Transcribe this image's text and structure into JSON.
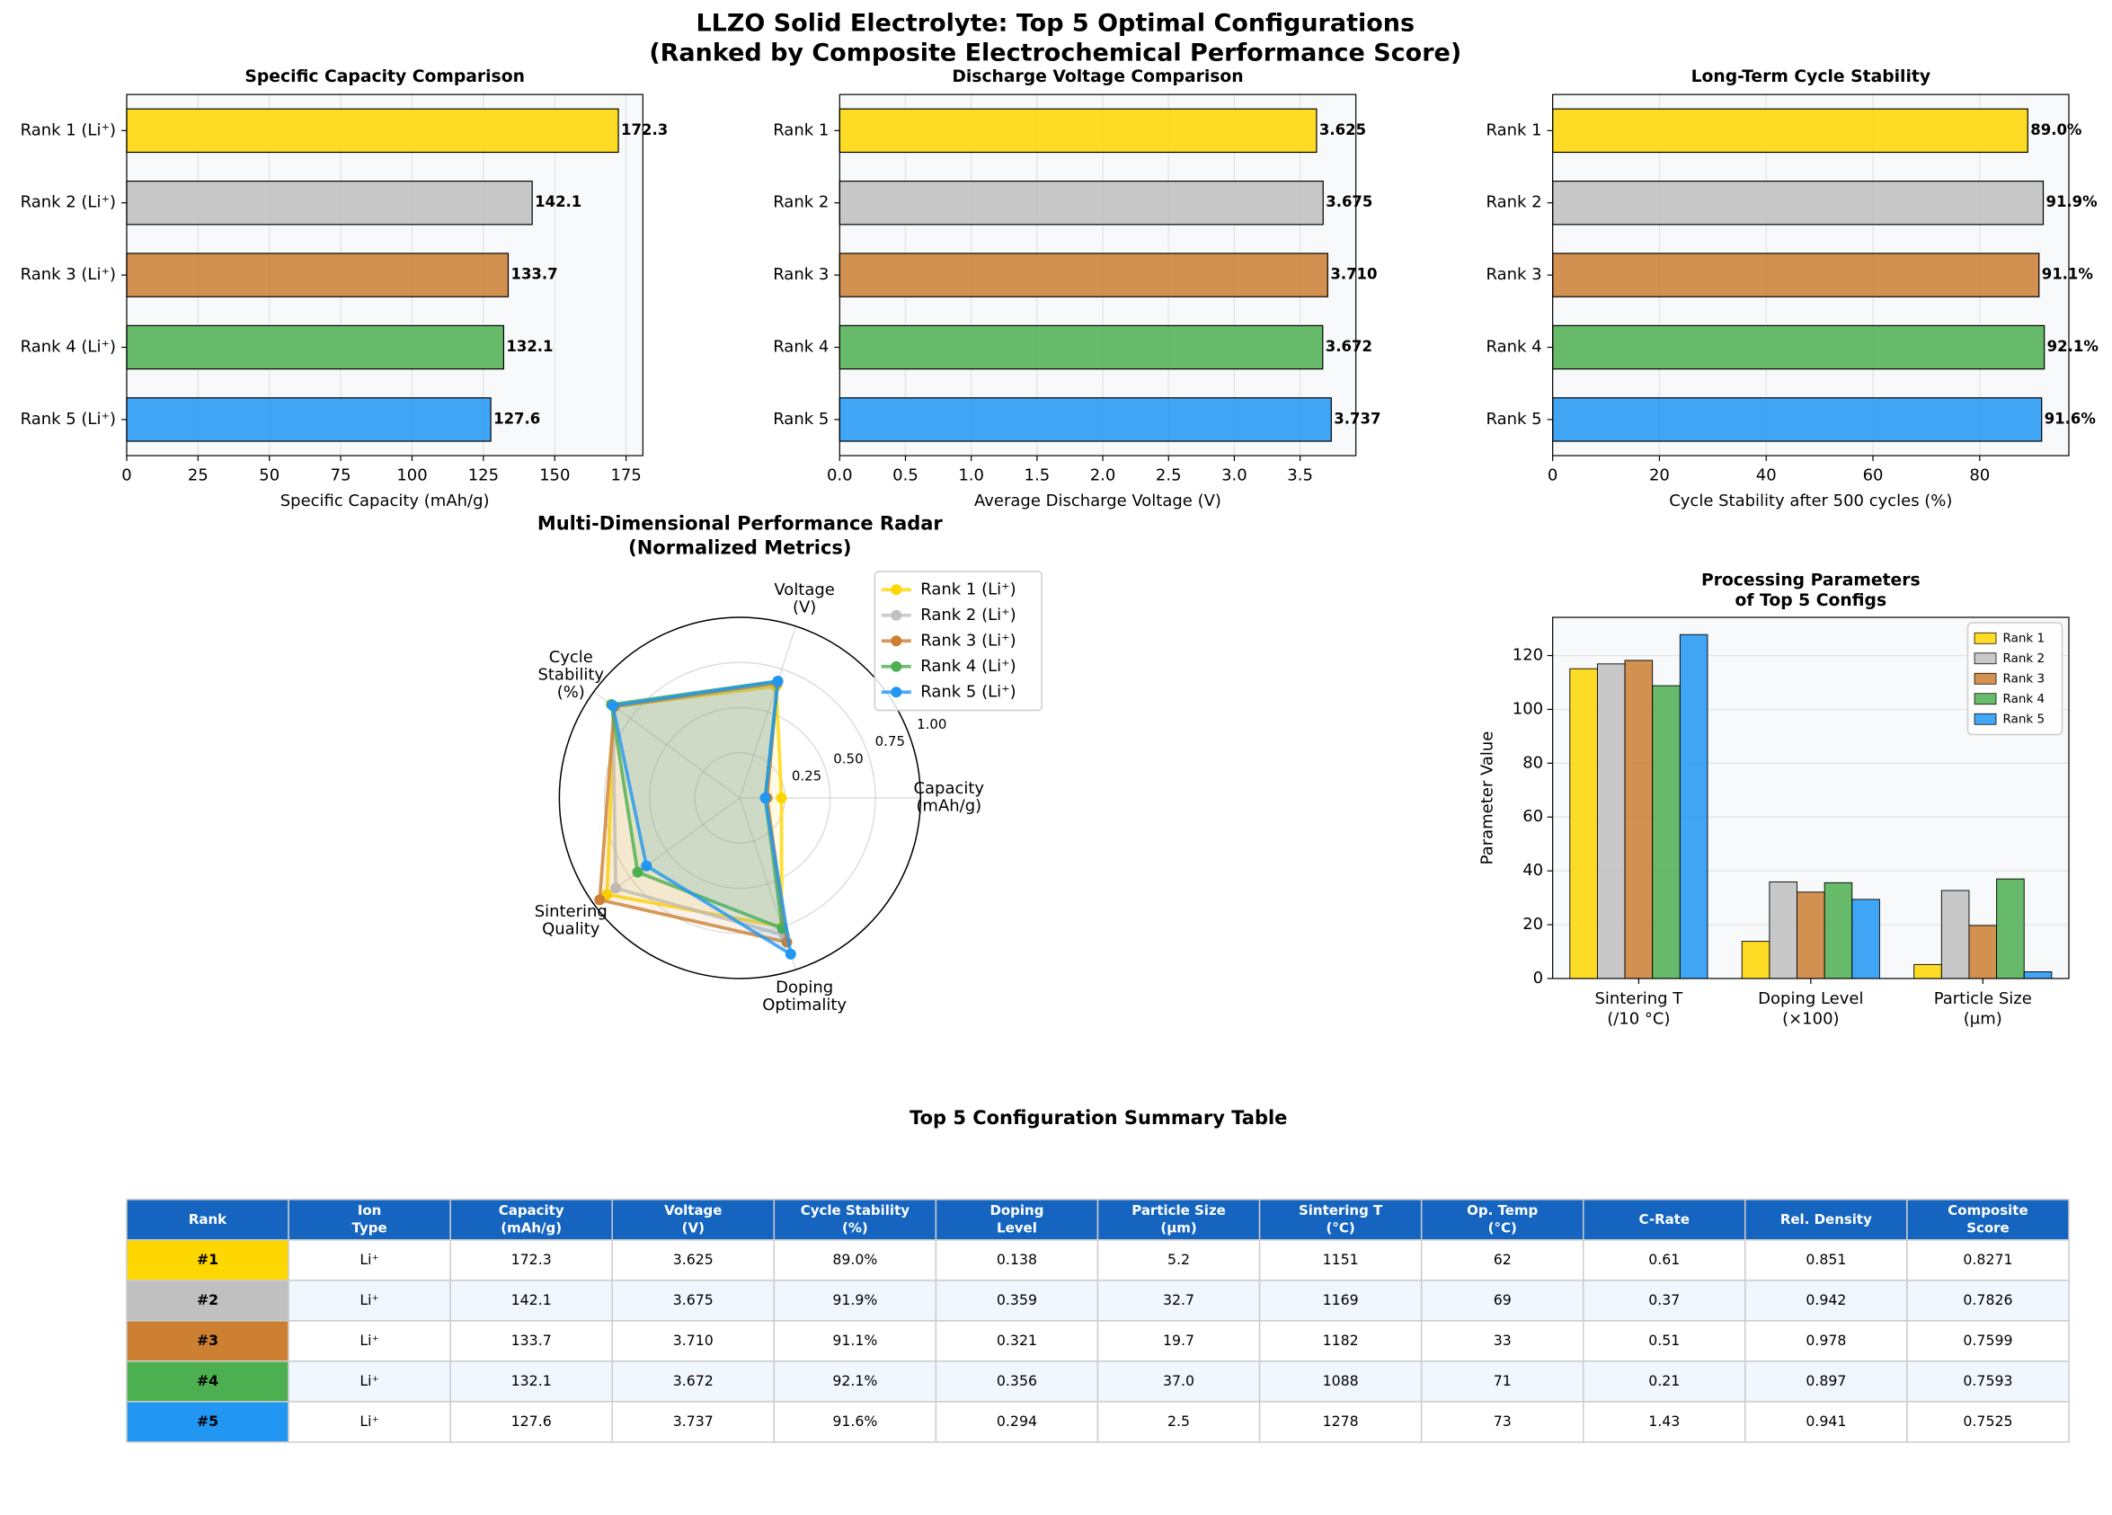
{
  "title": [
    "LLZO Solid Electrolyte: Top 5 Optimal Configurations",
    "(Ranked by Composite Electrochemical Performance Score)"
  ],
  "chart_data": [
    {
      "type": "barh",
      "title": [
        "Specific Capacity Comparison"
      ],
      "categories": [
        "Rank 1 (Li⁺)",
        "Rank 2 (Li⁺)",
        "Rank 3 (Li⁺)",
        "Rank 4 (Li⁺)",
        "Rank 5 (Li⁺)"
      ],
      "values": [
        172.3,
        142.1,
        133.7,
        132.1,
        127.6
      ],
      "colors": [
        "#FFD700",
        "#C0C0C0",
        "#CD7F32",
        "#4CAF50",
        "#2196F3"
      ],
      "xlim": [
        0,
        180.9
      ],
      "xticks": [
        0,
        25,
        50,
        75,
        100,
        125,
        150,
        175
      ],
      "xlabel": "Specific Capacity (mAh/g)",
      "grid": true
    },
    {
      "type": "barh",
      "title": [
        "Discharge Voltage Comparison"
      ],
      "categories": [
        "Rank 1",
        "Rank 2",
        "Rank 3",
        "Rank 4",
        "Rank 5"
      ],
      "values": [
        3.625,
        3.675,
        3.71,
        3.672,
        3.737
      ],
      "value_labels": [
        "3.625",
        "3.675",
        "3.710",
        "3.672",
        "3.737"
      ],
      "colors": [
        "#FFD700",
        "#C0C0C0",
        "#CD7F32",
        "#4CAF50",
        "#2196F3"
      ],
      "xlim": [
        0,
        3.924
      ],
      "xticks": [
        {
          "value": 0,
          "label": "0.0"
        },
        0.5,
        {
          "value": 1,
          "label": "1.0"
        },
        1.5,
        {
          "value": 2,
          "label": "2.0"
        },
        2.5,
        {
          "value": 3,
          "label": "3.0"
        },
        3.5
      ],
      "xlabel": "Average Discharge Voltage (V)",
      "grid": true
    },
    {
      "type": "barh",
      "title": [
        "Long-Term Cycle Stability"
      ],
      "categories": [
        "Rank 1",
        "Rank 2",
        "Rank 3",
        "Rank 4",
        "Rank 5"
      ],
      "values": [
        89.0,
        91.9,
        91.1,
        92.1,
        91.6
      ],
      "value_labels": [
        "89.0%",
        "91.9%",
        "91.1%",
        "92.1%",
        "91.6%"
      ],
      "colors": [
        "#FFD700",
        "#C0C0C0",
        "#CD7F32",
        "#4CAF50",
        "#2196F3"
      ],
      "xlim": [
        0,
        96.7
      ],
      "xticks": [
        0,
        20,
        40,
        60,
        80
      ],
      "xlabel": "Cycle Stability after 500 cycles (%)",
      "grid": true
    },
    {
      "type": "radar",
      "title": [
        "Multi-Dimensional Performance Radar",
        "(Normalized Metrics)"
      ],
      "axes": [
        [
          "Capacity",
          "(mAh/g)"
        ],
        [
          "Voltage",
          "(V)"
        ],
        [
          "Cycle",
          "Stability",
          "(%)"
        ],
        [
          "Sintering",
          "Quality"
        ],
        [
          "Doping",
          "Optimality"
        ]
      ],
      "rlim": [
        0,
        1
      ],
      "rticks": [
        0.25,
        {
          "value": 0.5,
          "label": "0.50"
        },
        0.75,
        {
          "value": 1,
          "label": "1.00"
        }
      ],
      "series": [
        {
          "name": "Rank 1 (Li⁺)",
          "color": "#FFD700",
          "values": [
            0.23,
            0.65,
            0.86,
            0.91,
            0.75
          ]
        },
        {
          "name": "Rank 2 (Li⁺)",
          "color": "#C0C0C0",
          "values": [
            0.15,
            0.67,
            0.87,
            0.85,
            0.8
          ]
        },
        {
          "name": "Rank 3 (Li⁺)",
          "color": "#CD7F32",
          "values": [
            0.15,
            0.67,
            0.86,
            0.96,
            0.84
          ]
        },
        {
          "name": "Rank 4 (Li⁺)",
          "color": "#4CAF50",
          "values": [
            0.14,
            0.68,
            0.88,
            0.7,
            0.76
          ]
        },
        {
          "name": "Rank 5 (Li⁺)",
          "color": "#2196F3",
          "values": [
            0.14,
            0.68,
            0.87,
            0.64,
            0.91
          ]
        }
      ],
      "legend": "upper right"
    },
    {
      "type": "grouped_bar",
      "title": [
        "Processing Parameters",
        "of Top 5 Configs"
      ],
      "categories": [
        [
          "Sintering T",
          "(/10 °C)"
        ],
        [
          "Doping Level",
          "(×100)"
        ],
        [
          "Particle Size",
          "(μm)"
        ]
      ],
      "series": [
        {
          "name": "Rank 1",
          "color": "#FFD700",
          "values": [
            115.1,
            13.8,
            5.2
          ]
        },
        {
          "name": "Rank 2",
          "color": "#C0C0C0",
          "values": [
            116.9,
            35.9,
            32.7
          ]
        },
        {
          "name": "Rank 3",
          "color": "#CD7F32",
          "values": [
            118.2,
            32.1,
            19.7
          ]
        },
        {
          "name": "Rank 4",
          "color": "#4CAF50",
          "values": [
            108.8,
            35.6,
            37.0
          ]
        },
        {
          "name": "Rank 5",
          "color": "#2196F3",
          "values": [
            127.8,
            29.4,
            2.5
          ]
        }
      ],
      "ylim": [
        0,
        134.2
      ],
      "yticks": [
        0,
        20,
        40,
        60,
        80,
        100,
        120
      ],
      "ylabel": "Parameter Value",
      "legend": "upper right",
      "grid": true
    }
  ],
  "table": {
    "title": "Top 5 Configuration Summary Table",
    "header": [
      [
        "Rank"
      ],
      [
        "Ion",
        "Type"
      ],
      [
        "Capacity",
        "(mAh/g)"
      ],
      [
        "Voltage",
        "(V)"
      ],
      [
        "Cycle Stability",
        "(%)"
      ],
      [
        "Doping",
        "Level"
      ],
      [
        "Particle Size",
        "(μm)"
      ],
      [
        "Sintering T",
        "(°C)"
      ],
      [
        "Op. Temp",
        "(°C)"
      ],
      [
        "C-Rate"
      ],
      [
        "Rel. Density"
      ],
      [
        "Composite",
        "Score"
      ]
    ],
    "rows": [
      [
        "#1",
        "Li⁺",
        "172.3",
        "3.625",
        "89.0%",
        "0.138",
        "5.2",
        "1151",
        "62",
        "0.61",
        "0.851",
        "0.8271"
      ],
      [
        "#2",
        "Li⁺",
        "142.1",
        "3.675",
        "91.9%",
        "0.359",
        "32.7",
        "1169",
        "69",
        "0.37",
        "0.942",
        "0.7826"
      ],
      [
        "#3",
        "Li⁺",
        "133.7",
        "3.710",
        "91.1%",
        "0.321",
        "19.7",
        "1182",
        "33",
        "0.51",
        "0.978",
        "0.7599"
      ],
      [
        "#4",
        "Li⁺",
        "132.1",
        "3.672",
        "92.1%",
        "0.356",
        "37.0",
        "1088",
        "71",
        "0.21",
        "0.897",
        "0.7593"
      ],
      [
        "#5",
        "Li⁺",
        "127.6",
        "3.737",
        "91.6%",
        "0.294",
        "2.5",
        "1278",
        "73",
        "1.43",
        "0.941",
        "0.7525"
      ]
    ],
    "rank_colors": [
      "#FFD700",
      "#C0C0C0",
      "#CD7F32",
      "#4CAF50",
      "#2196F3"
    ],
    "header_color": "#1565C0"
  }
}
